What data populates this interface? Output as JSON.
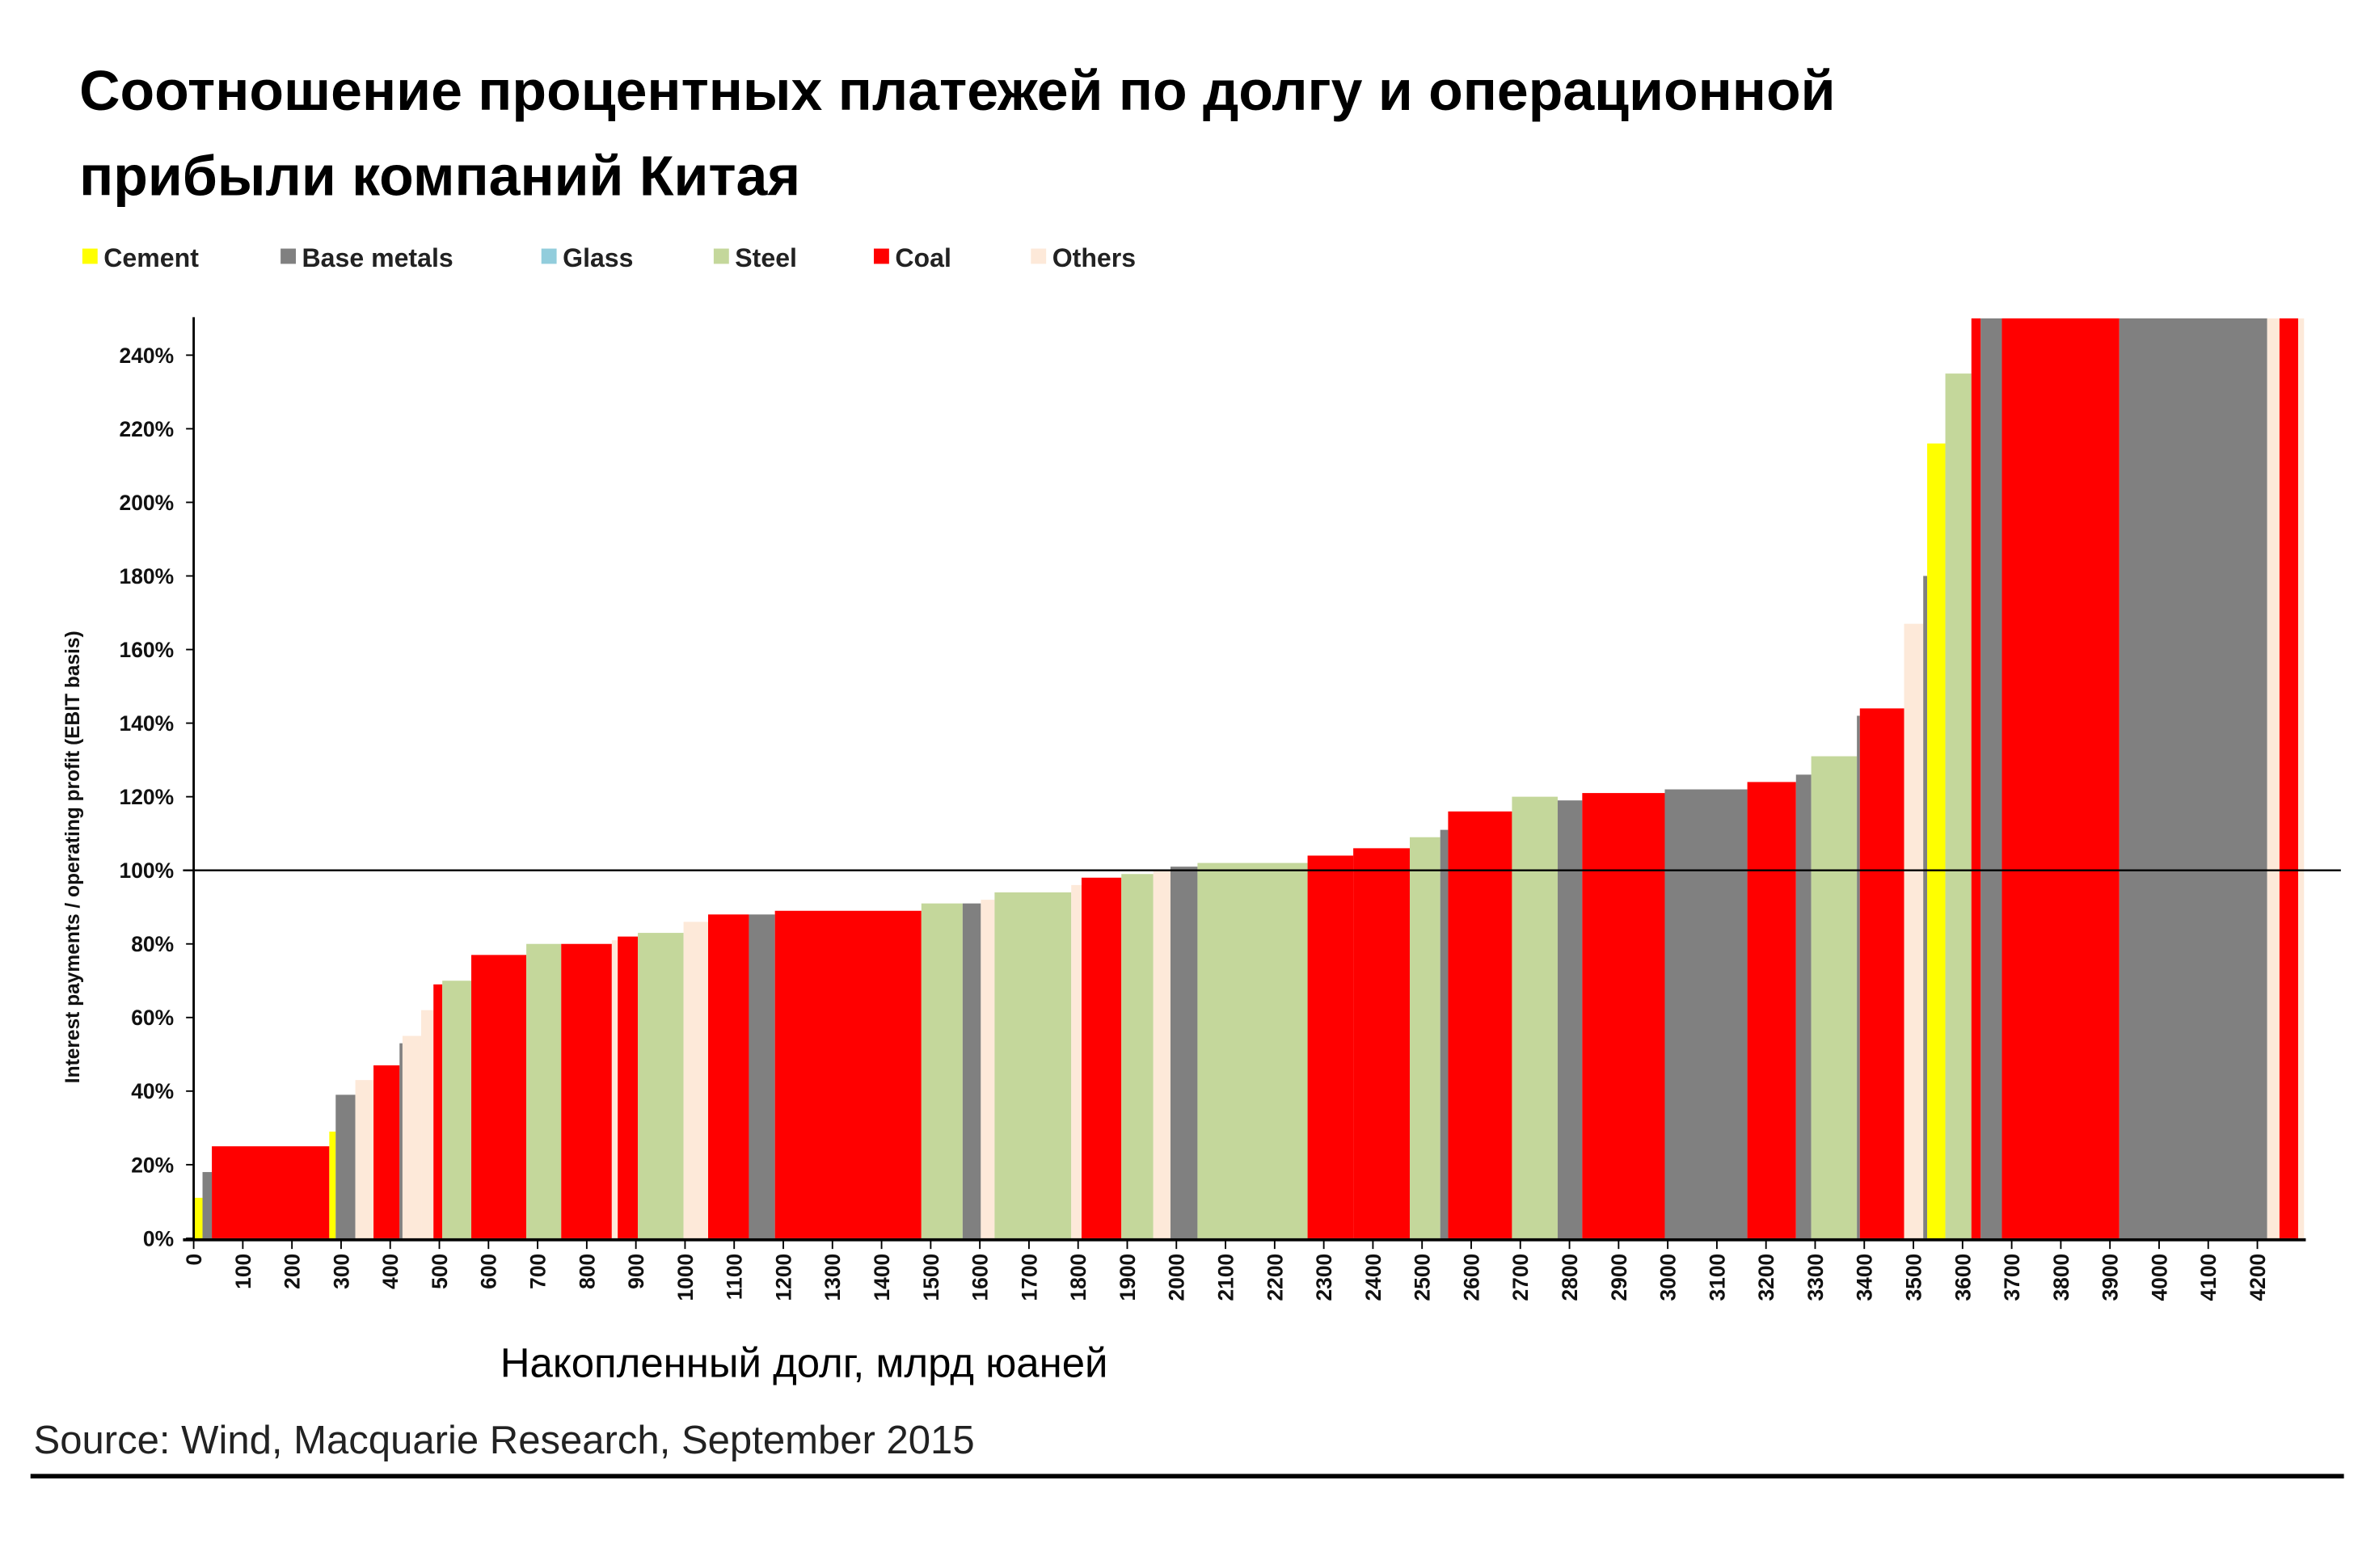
{
  "chart_data": {
    "type": "bar",
    "variant": "variable-width cumulative bars (Marimekko-style)",
    "title_line1": "Соотношение процентных платежей по долгу и операционной",
    "title_line2": "прибыли компаний Китая",
    "xlabel": "Накопленный долг, млрд юаней",
    "ylabel": "Interest payments / operating profit (EBIT basis)",
    "source": "Source: Wind, Macquarie Research, September 2015",
    "xlim": [
      0,
      4300
    ],
    "ylim": [
      0,
      250
    ],
    "x_ticks": [
      "0",
      "100",
      "200",
      "300",
      "400",
      "500",
      "600",
      "700",
      "800",
      "900",
      "1000",
      "1100",
      "1200",
      "1300",
      "1400",
      "1500",
      "1600",
      "1700",
      "1800",
      "1900",
      "2000",
      "2100",
      "2200",
      "2300",
      "2400",
      "2500",
      "2600",
      "2700",
      "2800",
      "2900",
      "3000",
      "3100",
      "3200",
      "3300",
      "3400",
      "3500",
      "3600",
      "3700",
      "3800",
      "3900",
      "4000",
      "4100",
      "4200"
    ],
    "y_ticks": [
      "0%",
      "20%",
      "40%",
      "60%",
      "80%",
      "100%",
      "120%",
      "140%",
      "160%",
      "180%",
      "200%",
      "220%",
      "240%"
    ],
    "reference_line": 100,
    "legend_position": "top-left",
    "legend": [
      {
        "name": "Cement",
        "color": "#ffff00"
      },
      {
        "name": "Base metals",
        "color": "#808080"
      },
      {
        "name": "Glass",
        "color": "#92cddc"
      },
      {
        "name": "Steel",
        "color": "#c4d79b"
      },
      {
        "name": "Coal",
        "color": "#ff0000"
      },
      {
        "name": "Others",
        "color": "#fde9d9"
      }
    ],
    "bars_columns": [
      "x_start",
      "x_end",
      "value_pct",
      "sector"
    ],
    "bars": [
      [
        0,
        18,
        11,
        "Cement"
      ],
      [
        18,
        37,
        18,
        "Base metals"
      ],
      [
        37,
        276,
        25,
        "Coal"
      ],
      [
        276,
        289,
        29,
        "Cement"
      ],
      [
        289,
        329,
        39,
        "Base metals"
      ],
      [
        329,
        366,
        43,
        "Others"
      ],
      [
        366,
        419,
        47,
        "Coal"
      ],
      [
        419,
        425,
        53,
        "Base metals"
      ],
      [
        425,
        463,
        55,
        "Others"
      ],
      [
        463,
        488,
        62,
        "Others"
      ],
      [
        488,
        506,
        69,
        "Coal"
      ],
      [
        506,
        565,
        70,
        "Steel"
      ],
      [
        565,
        677,
        77,
        "Coal"
      ],
      [
        677,
        748,
        80,
        "Steel"
      ],
      [
        748,
        851,
        80,
        "Coal"
      ],
      [
        851,
        863,
        81,
        "Others"
      ],
      [
        863,
        904,
        82,
        "Coal"
      ],
      [
        904,
        997,
        83,
        "Steel"
      ],
      [
        997,
        1047,
        86,
        "Others"
      ],
      [
        1047,
        1130,
        88,
        "Coal"
      ],
      [
        1130,
        1183,
        88,
        "Base metals"
      ],
      [
        1183,
        1481,
        89,
        "Coal"
      ],
      [
        1481,
        1565,
        91,
        "Steel"
      ],
      [
        1565,
        1602,
        91,
        "Base metals"
      ],
      [
        1602,
        1630,
        92,
        "Others"
      ],
      [
        1630,
        1786,
        94,
        "Steel"
      ],
      [
        1786,
        1807,
        96,
        "Others"
      ],
      [
        1807,
        1888,
        98,
        "Coal"
      ],
      [
        1888,
        1953,
        99,
        "Steel"
      ],
      [
        1953,
        1988,
        100,
        "Others"
      ],
      [
        1988,
        2043,
        101,
        "Base metals"
      ],
      [
        2043,
        2267,
        102,
        "Steel"
      ],
      [
        2267,
        2360,
        104,
        "Coal"
      ],
      [
        2360,
        2475,
        106,
        "Coal"
      ],
      [
        2475,
        2537,
        109,
        "Steel"
      ],
      [
        2537,
        2553,
        111,
        "Base metals"
      ],
      [
        2553,
        2683,
        116,
        "Coal"
      ],
      [
        2683,
        2776,
        120,
        "Steel"
      ],
      [
        2776,
        2826,
        119,
        "Base metals"
      ],
      [
        2826,
        2994,
        121,
        "Coal"
      ],
      [
        2994,
        3162,
        122,
        "Base metals"
      ],
      [
        3162,
        3261,
        124,
        "Coal"
      ],
      [
        3261,
        3292,
        126,
        "Base metals"
      ],
      [
        3292,
        3385,
        131,
        "Steel"
      ],
      [
        3385,
        3391,
        142,
        "Base metals"
      ],
      [
        3391,
        3481,
        144,
        "Coal"
      ],
      [
        3481,
        3520,
        167,
        "Others"
      ],
      [
        3520,
        3528,
        180,
        "Base metals"
      ],
      [
        3528,
        3565,
        216,
        "Cement"
      ],
      [
        3565,
        3618,
        235,
        "Steel"
      ],
      [
        3618,
        3637,
        250,
        "Coal"
      ],
      [
        3637,
        3680,
        250,
        "Base metals"
      ],
      [
        3680,
        3919,
        250,
        "Coal"
      ],
      [
        3919,
        4220,
        250,
        "Base metals"
      ],
      [
        4220,
        4245,
        250,
        "Others"
      ],
      [
        4245,
        4283,
        250,
        "Coal"
      ],
      [
        4283,
        4295,
        250,
        "Others"
      ]
    ]
  }
}
